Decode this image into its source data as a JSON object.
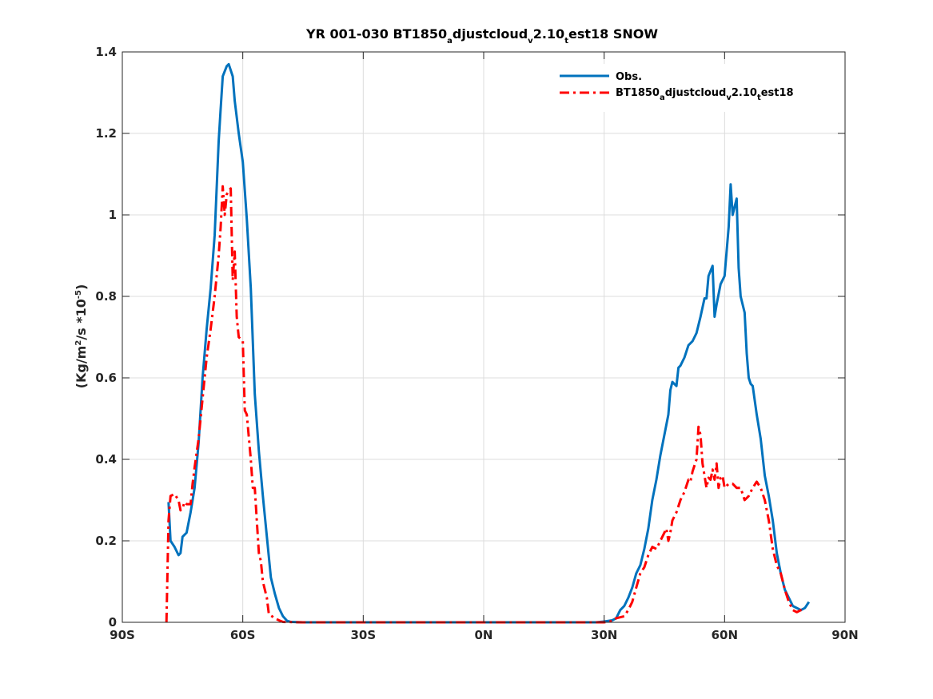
{
  "chart_data": {
    "type": "line",
    "title": {
      "prefix": "YR 001-030 BT1850",
      "sub1": "a",
      "mid1": "djustcloud",
      "sub2": "v",
      "mid2": "2.10",
      "sub3": "t",
      "suffix": "est18 SNOW"
    },
    "ylabel": {
      "pre": "(Kg/m",
      "sup1": "2",
      "mid": "/s *10",
      "sup2": "-5",
      "post": ")"
    },
    "xlim": [
      -90,
      90
    ],
    "ylim": [
      0,
      1.4
    ],
    "grid": true,
    "legend_position": "top-right",
    "x_ticks": [
      {
        "value": -90,
        "label": "90S"
      },
      {
        "value": -60,
        "label": "60S"
      },
      {
        "value": -30,
        "label": "30S"
      },
      {
        "value": 0,
        "label": "0N"
      },
      {
        "value": 30,
        "label": "30N"
      },
      {
        "value": 60,
        "label": "60N"
      },
      {
        "value": 90,
        "label": "90N"
      }
    ],
    "y_ticks": [
      {
        "value": 0,
        "label": "0"
      },
      {
        "value": 0.2,
        "label": "0.2"
      },
      {
        "value": 0.4,
        "label": "0.4"
      },
      {
        "value": 0.6,
        "label": "0.6"
      },
      {
        "value": 0.8,
        "label": "0.8"
      },
      {
        "value": 1.0,
        "label": "1"
      },
      {
        "value": 1.2,
        "label": "1.2"
      },
      {
        "value": 1.4,
        "label": "1.4"
      }
    ],
    "series": [
      {
        "name": "Obs.",
        "color": "#0072BD",
        "style": "solid",
        "points": [
          [
            -78.5,
            0.295
          ],
          [
            -78,
            0.2
          ],
          [
            -77,
            0.185
          ],
          [
            -76,
            0.165
          ],
          [
            -75.5,
            0.17
          ],
          [
            -75,
            0.21
          ],
          [
            -74,
            0.22
          ],
          [
            -73,
            0.27
          ],
          [
            -72,
            0.33
          ],
          [
            -71,
            0.44
          ],
          [
            -70,
            0.6
          ],
          [
            -69,
            0.72
          ],
          [
            -68,
            0.82
          ],
          [
            -67,
            0.95
          ],
          [
            -66,
            1.18
          ],
          [
            -65.5,
            1.26
          ],
          [
            -65,
            1.34
          ],
          [
            -64,
            1.365
          ],
          [
            -63.5,
            1.37
          ],
          [
            -62.5,
            1.34
          ],
          [
            -62,
            1.28
          ],
          [
            -61,
            1.2
          ],
          [
            -60,
            1.13
          ],
          [
            -59,
            0.99
          ],
          [
            -58,
            0.82
          ],
          [
            -57,
            0.56
          ],
          [
            -56,
            0.42
          ],
          [
            -55,
            0.31
          ],
          [
            -54,
            0.21
          ],
          [
            -53,
            0.11
          ],
          [
            -52,
            0.07
          ],
          [
            -51,
            0.035
          ],
          [
            -50,
            0.015
          ],
          [
            -49,
            0.004
          ],
          [
            -48,
            0.001
          ],
          [
            -45,
            0.0
          ],
          [
            -30,
            0.0
          ],
          [
            0,
            0.0
          ],
          [
            28,
            0.0
          ],
          [
            30,
            0.002
          ],
          [
            32,
            0.005
          ],
          [
            33,
            0.01
          ],
          [
            34,
            0.03
          ],
          [
            35,
            0.04
          ],
          [
            36,
            0.06
          ],
          [
            37,
            0.085
          ],
          [
            38,
            0.12
          ],
          [
            39,
            0.14
          ],
          [
            40,
            0.18
          ],
          [
            41,
            0.23
          ],
          [
            42,
            0.3
          ],
          [
            43,
            0.35
          ],
          [
            44,
            0.41
          ],
          [
            45,
            0.46
          ],
          [
            46,
            0.51
          ],
          [
            46.5,
            0.57
          ],
          [
            47,
            0.59
          ],
          [
            48,
            0.58
          ],
          [
            48.5,
            0.625
          ],
          [
            49,
            0.63
          ],
          [
            50,
            0.65
          ],
          [
            51,
            0.68
          ],
          [
            52,
            0.69
          ],
          [
            53,
            0.71
          ],
          [
            54,
            0.75
          ],
          [
            55,
            0.795
          ],
          [
            55.5,
            0.795
          ],
          [
            56,
            0.85
          ],
          [
            57,
            0.875
          ],
          [
            57.5,
            0.75
          ],
          [
            58,
            0.78
          ],
          [
            59,
            0.83
          ],
          [
            60,
            0.85
          ],
          [
            61,
            0.97
          ],
          [
            61.5,
            1.075
          ],
          [
            62,
            1.0
          ],
          [
            63,
            1.04
          ],
          [
            63.5,
            0.87
          ],
          [
            64,
            0.8
          ],
          [
            65,
            0.76
          ],
          [
            65.5,
            0.66
          ],
          [
            66,
            0.6
          ],
          [
            66.5,
            0.585
          ],
          [
            67,
            0.58
          ],
          [
            68,
            0.51
          ],
          [
            69,
            0.45
          ],
          [
            70,
            0.36
          ],
          [
            71,
            0.31
          ],
          [
            72,
            0.25
          ],
          [
            73,
            0.17
          ],
          [
            74,
            0.12
          ],
          [
            75,
            0.08
          ],
          [
            76,
            0.06
          ],
          [
            77,
            0.04
          ],
          [
            78,
            0.035
          ],
          [
            79,
            0.03
          ],
          [
            80,
            0.035
          ],
          [
            81,
            0.05
          ]
        ]
      },
      {
        "name": "BT1850adjustcloudv2.10test18",
        "color": "#FF0000",
        "style": "dashdot",
        "points": [
          [
            -79,
            0.0
          ],
          [
            -78.5,
            0.25
          ],
          [
            -78,
            0.31
          ],
          [
            -77,
            0.315
          ],
          [
            -76,
            0.3
          ],
          [
            -75.5,
            0.275
          ],
          [
            -75,
            0.28
          ],
          [
            -74.5,
            0.295
          ],
          [
            -74,
            0.29
          ],
          [
            -73,
            0.29
          ],
          [
            -72.5,
            0.34
          ],
          [
            -72,
            0.38
          ],
          [
            -71,
            0.45
          ],
          [
            -70,
            0.55
          ],
          [
            -69,
            0.65
          ],
          [
            -68,
            0.72
          ],
          [
            -67,
            0.8
          ],
          [
            -66,
            0.9
          ],
          [
            -65.5,
            0.97
          ],
          [
            -65,
            1.07
          ],
          [
            -64.5,
            1.0
          ],
          [
            -64,
            1.05
          ],
          [
            -63.5,
            1.06
          ],
          [
            -63,
            1.065
          ],
          [
            -62.5,
            0.84
          ],
          [
            -62,
            0.91
          ],
          [
            -61.5,
            0.75
          ],
          [
            -61,
            0.7
          ],
          [
            -60,
            0.69
          ],
          [
            -59.5,
            0.52
          ],
          [
            -59,
            0.51
          ],
          [
            -58,
            0.4
          ],
          [
            -57.5,
            0.33
          ],
          [
            -57,
            0.33
          ],
          [
            -56.5,
            0.25
          ],
          [
            -56,
            0.17
          ],
          [
            -55.5,
            0.15
          ],
          [
            -55,
            0.1
          ],
          [
            -54,
            0.06
          ],
          [
            -53.5,
            0.02
          ],
          [
            -52,
            0.01
          ],
          [
            -51,
            0.005
          ],
          [
            -50,
            0.001
          ],
          [
            -45,
            0.0
          ],
          [
            0,
            0.0
          ],
          [
            30,
            0.0
          ],
          [
            32,
            0.003
          ],
          [
            33,
            0.01
          ],
          [
            35,
            0.015
          ],
          [
            36,
            0.03
          ],
          [
            37,
            0.05
          ],
          [
            38,
            0.085
          ],
          [
            39,
            0.12
          ],
          [
            40,
            0.135
          ],
          [
            41,
            0.165
          ],
          [
            42,
            0.185
          ],
          [
            43,
            0.18
          ],
          [
            44,
            0.2
          ],
          [
            45,
            0.22
          ],
          [
            45.5,
            0.23
          ],
          [
            46,
            0.2
          ],
          [
            46.5,
            0.22
          ],
          [
            47,
            0.25
          ],
          [
            48,
            0.27
          ],
          [
            49,
            0.3
          ],
          [
            50,
            0.32
          ],
          [
            51,
            0.35
          ],
          [
            51.5,
            0.345
          ],
          [
            52,
            0.37
          ],
          [
            53,
            0.4
          ],
          [
            53.5,
            0.48
          ],
          [
            54,
            0.46
          ],
          [
            54.5,
            0.39
          ],
          [
            55,
            0.36
          ],
          [
            55.5,
            0.33
          ],
          [
            56,
            0.355
          ],
          [
            56.5,
            0.35
          ],
          [
            57,
            0.375
          ],
          [
            57.5,
            0.35
          ],
          [
            58,
            0.39
          ],
          [
            58.5,
            0.33
          ],
          [
            59,
            0.355
          ],
          [
            59.5,
            0.36
          ],
          [
            60,
            0.33
          ],
          [
            61,
            0.34
          ],
          [
            62,
            0.34
          ],
          [
            63,
            0.33
          ],
          [
            64,
            0.33
          ],
          [
            65,
            0.3
          ],
          [
            66,
            0.31
          ],
          [
            67,
            0.33
          ],
          [
            68,
            0.345
          ],
          [
            69,
            0.33
          ],
          [
            70,
            0.3
          ],
          [
            71,
            0.25
          ],
          [
            72,
            0.18
          ],
          [
            73,
            0.14
          ],
          [
            74,
            0.12
          ],
          [
            75,
            0.08
          ],
          [
            76,
            0.05
          ],
          [
            77,
            0.03
          ],
          [
            78,
            0.025
          ],
          [
            79,
            0.03
          ],
          [
            80,
            0.03
          ]
        ]
      }
    ]
  },
  "legend": {
    "entries": [
      {
        "text_main": "Obs."
      },
      {
        "text_pre": "BT1850",
        "s1": "a",
        "m1": "djustcloud",
        "s2": "v",
        "m2": "2.10",
        "s3": "t",
        "post": "est18"
      }
    ]
  }
}
